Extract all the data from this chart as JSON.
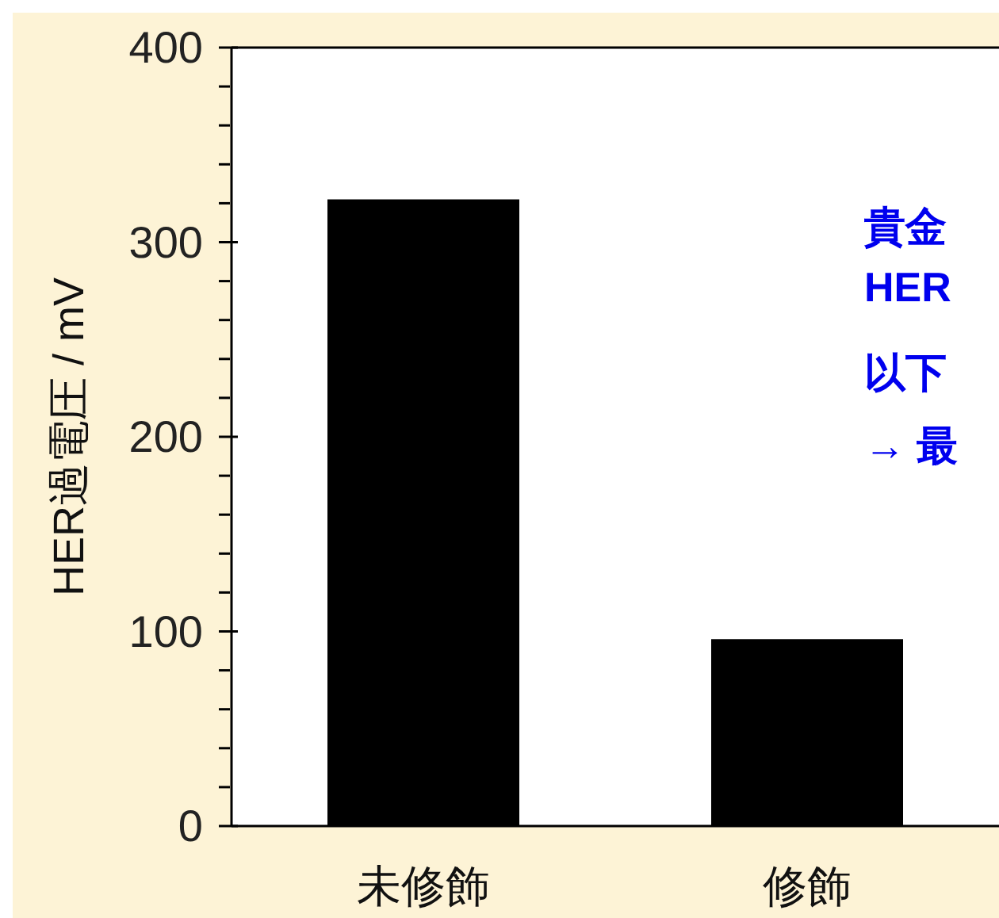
{
  "chart_data": {
    "type": "bar",
    "ylabel": "HER過電圧 / mV",
    "categories": [
      "未修飾",
      "修飾"
    ],
    "values": [
      322,
      96
    ],
    "color": "#000000",
    "ylim": [
      0,
      400
    ],
    "yticks": [
      0,
      {
        "value": 20,
        "label": null
      },
      {
        "value": 40,
        "label": null
      },
      {
        "value": 60,
        "label": null
      },
      {
        "value": 80,
        "label": null
      },
      100,
      {
        "value": 120,
        "label": null
      },
      {
        "value": 140,
        "label": null
      },
      {
        "value": 160,
        "label": null
      },
      {
        "value": 180,
        "label": null
      },
      200,
      {
        "value": 220,
        "label": null
      },
      {
        "value": 240,
        "label": null
      },
      {
        "value": 260,
        "label": null
      },
      {
        "value": 280,
        "label": null
      },
      300,
      {
        "value": 320,
        "label": null
      },
      {
        "value": 340,
        "label": null
      },
      {
        "value": 360,
        "label": null
      },
      {
        "value": 380,
        "label": null
      },
      400
    ],
    "annotations": [
      "貴金",
      "HER",
      "以下",
      "→ 最"
    ]
  }
}
